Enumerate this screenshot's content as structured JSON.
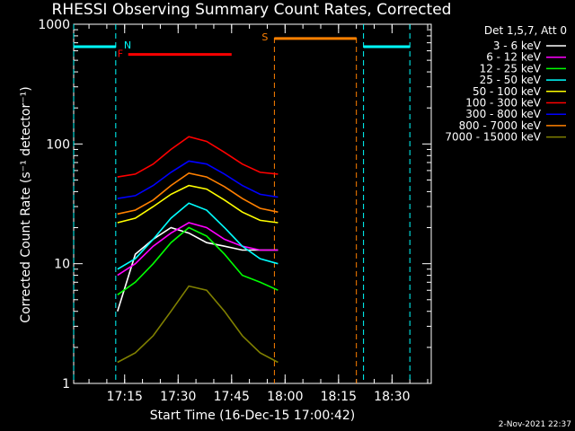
{
  "chart_data": {
    "type": "line",
    "title": "RHESSI Observing Summary Count Rates, Corrected",
    "ylabel": "Corrected Count Rate (s⁻¹ detector⁻¹)",
    "xlabel": "Start Time (16-Dec-15 17:00:42)",
    "yscale": "log",
    "ylim": [
      1,
      1000
    ],
    "xlim": [
      "17:00:42",
      "18:41:00"
    ],
    "y_ticks": [
      "1",
      "10",
      "100",
      "1000"
    ],
    "x_ticks": [
      "17:15",
      "17:30",
      "17:45",
      "18:00",
      "18:15",
      "18:30"
    ],
    "legend_header": "Det 1,5,7, Att 0",
    "series": [
      {
        "name": "3 - 6 keV",
        "color": "#ffffff",
        "y": [
          4.0,
          12,
          16,
          20,
          18,
          15,
          14,
          13,
          13,
          13
        ]
      },
      {
        "name": "6 - 12 keV",
        "color": "#ff00ff",
        "y": [
          8,
          10,
          14,
          18,
          22,
          20,
          16,
          14,
          13,
          13
        ]
      },
      {
        "name": "12 - 25 keV",
        "color": "#00ff00",
        "y": [
          5.5,
          7,
          10,
          15,
          20,
          17,
          12,
          8,
          7,
          6
        ]
      },
      {
        "name": "25 - 50 keV",
        "color": "#00ffff",
        "y": [
          9,
          11,
          16,
          24,
          32,
          28,
          20,
          14,
          11,
          10
        ]
      },
      {
        "name": "50 - 100 keV",
        "color": "#ffff00",
        "y": [
          22,
          24,
          30,
          38,
          45,
          42,
          34,
          27,
          23,
          22
        ]
      },
      {
        "name": "100 - 300 keV",
        "color": "#ff0000",
        "y": [
          53,
          56,
          68,
          90,
          115,
          105,
          85,
          68,
          58,
          56
        ]
      },
      {
        "name": "300 - 800 keV",
        "color": "#0000ff",
        "y": [
          35,
          37,
          45,
          58,
          72,
          68,
          56,
          45,
          38,
          36
        ]
      },
      {
        "name": "800 - 7000 keV",
        "color": "#ff8000",
        "y": [
          26,
          28,
          34,
          45,
          57,
          53,
          44,
          35,
          29,
          27
        ]
      },
      {
        "name": "7000 - 15000 keV",
        "color": "#808000",
        "y": [
          1.5,
          1.8,
          2.5,
          4,
          6.5,
          6,
          4,
          2.5,
          1.8,
          1.5
        ]
      }
    ],
    "series_times": [
      "17:13",
      "17:18",
      "17:23",
      "17:28",
      "17:33",
      "17:38",
      "17:43",
      "17:48",
      "17:53",
      "17:58"
    ],
    "annotations": {
      "flare_label": "F",
      "flare_bar": {
        "start": "17:16",
        "end": "17:45",
        "y": 560,
        "color": "#ff0000"
      },
      "night_label": "N",
      "night_bars": [
        {
          "start": "17:00:42",
          "end": "17:12:30",
          "y": 650,
          "color": "#00ffff"
        },
        {
          "start": "18:22",
          "end": "18:35",
          "y": 650,
          "color": "#00ffff"
        }
      ],
      "night_edges": [
        "17:00:42",
        "17:12:30",
        "18:22",
        "18:35"
      ],
      "saa_label": "S",
      "saa_bar": {
        "start": "17:57",
        "end": "18:20",
        "y": 760,
        "color": "#ff8000"
      },
      "saa_edges": [
        "17:57",
        "18:20"
      ]
    },
    "grid": false,
    "legend_position": "right"
  },
  "footer_date": "2-Nov-2021 22:37"
}
